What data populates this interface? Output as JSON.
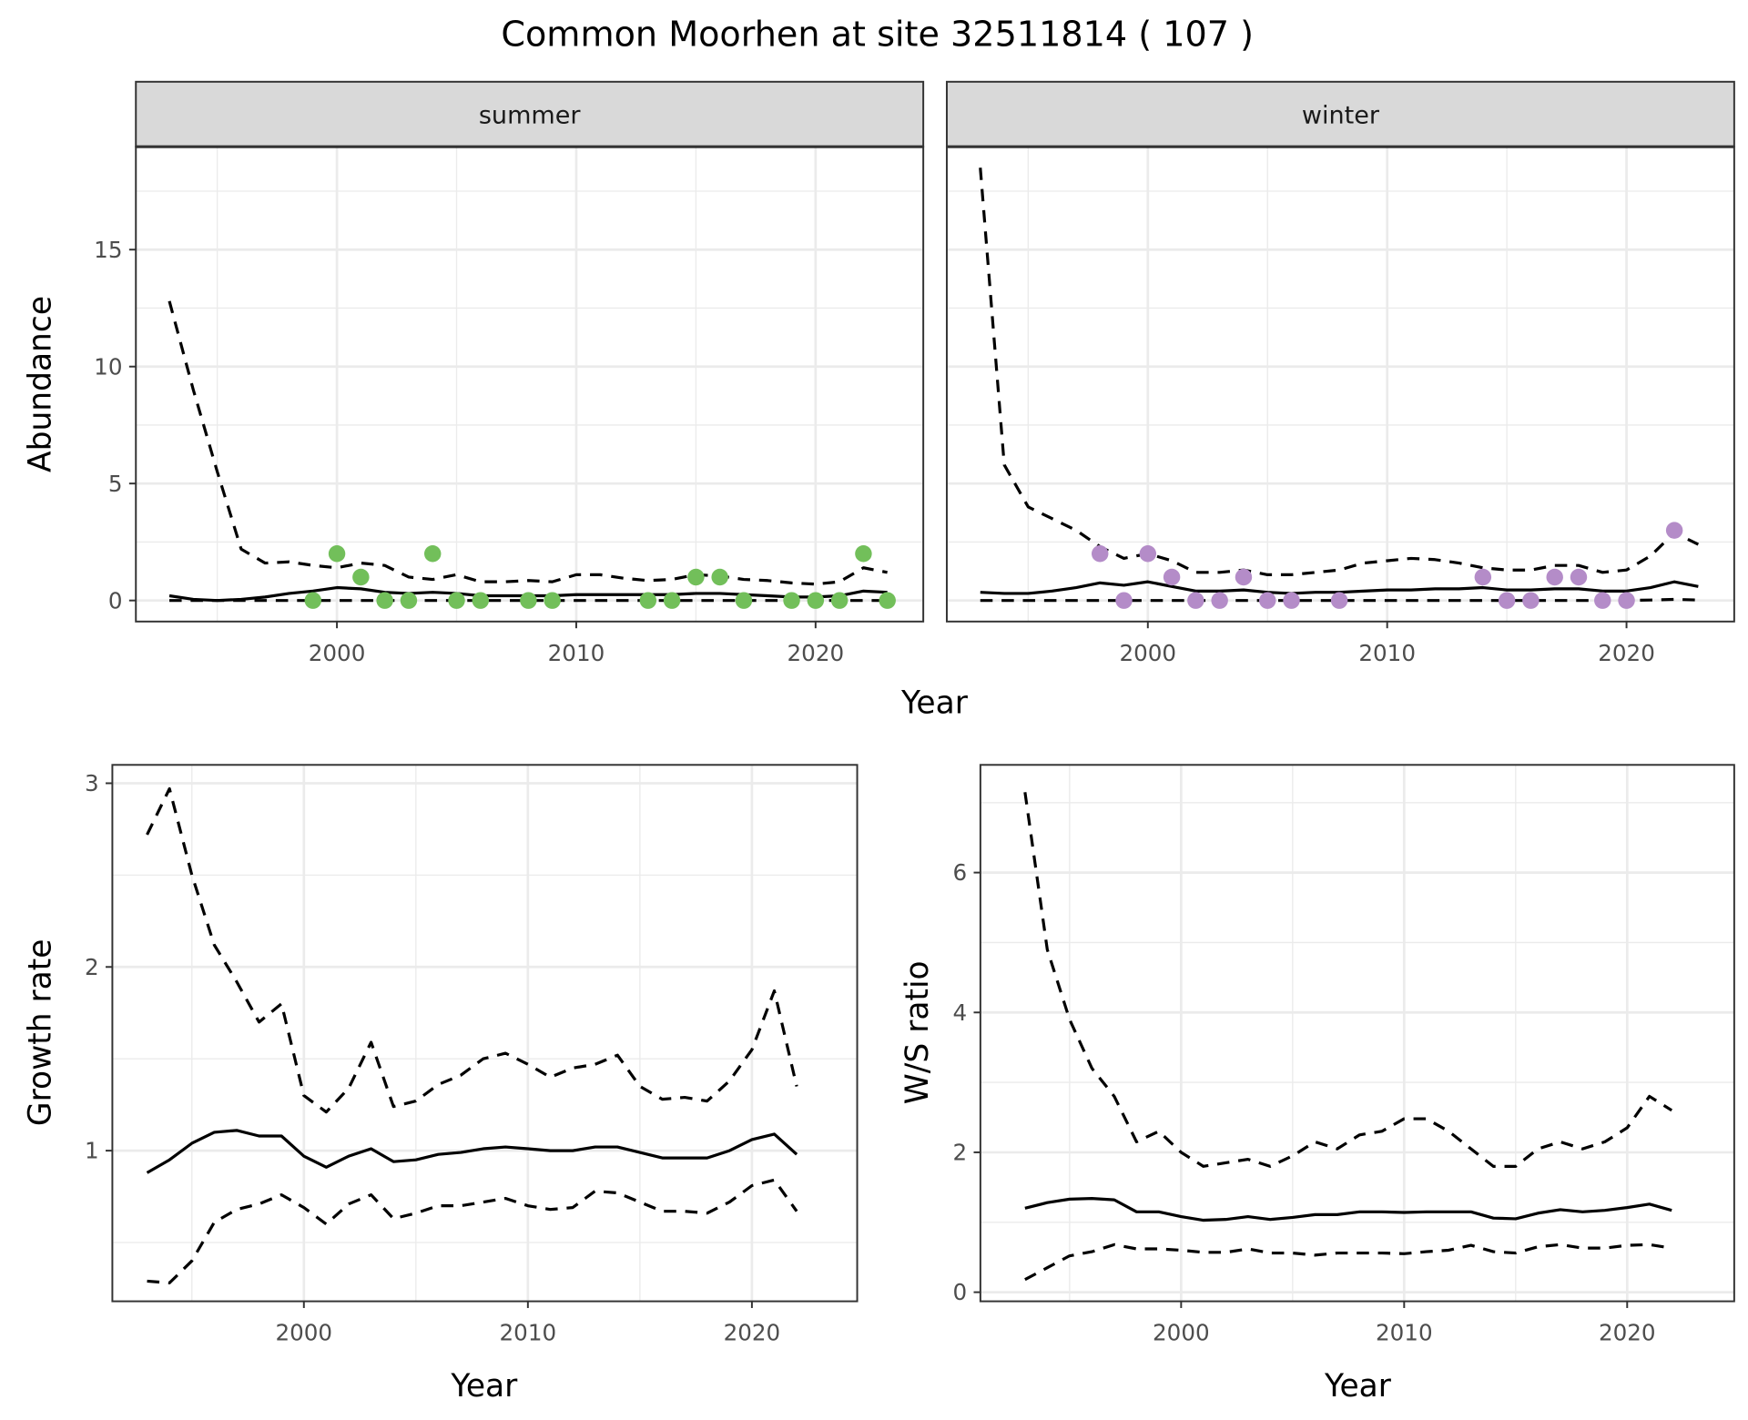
{
  "title": "Common Moorhen at site 32511814 ( 107 )",
  "colors": {
    "summer": "#72bf5a",
    "winter": "#b48cc8",
    "line": "#000000",
    "strip": "#d9d9d9",
    "grid": "#ebebeb"
  },
  "chart_data": [
    {
      "type": "line",
      "panel": "top-left",
      "strip": "summer",
      "xlabel": "Year",
      "ylabel": "Abundance",
      "xlim": [
        1991.6,
        2024.5
      ],
      "ylim": [
        -0.9,
        19.4
      ],
      "xticks": [
        2000,
        2010,
        2020
      ],
      "yticks": [
        0,
        5,
        10,
        15
      ],
      "grid": true,
      "x": [
        1993,
        1994,
        1995,
        1996,
        1997,
        1998,
        1999,
        2000,
        2001,
        2002,
        2003,
        2004,
        2005,
        2006,
        2007,
        2008,
        2009,
        2010,
        2011,
        2012,
        2013,
        2014,
        2015,
        2016,
        2017,
        2018,
        2019,
        2020,
        2021,
        2022,
        2023
      ],
      "series": [
        {
          "style": "solid",
          "values": [
            0.2,
            0.05,
            0,
            0.05,
            0.15,
            0.3,
            0.4,
            0.55,
            0.5,
            0.35,
            0.3,
            0.35,
            0.3,
            0.2,
            0.2,
            0.2,
            0.2,
            0.25,
            0.25,
            0.25,
            0.25,
            0.25,
            0.3,
            0.3,
            0.25,
            0.2,
            0.15,
            0.15,
            0.2,
            0.4,
            0.35
          ]
        },
        {
          "style": "dashed",
          "values": [
            12.8,
            9,
            5.5,
            2.2,
            1.6,
            1.65,
            1.5,
            1.4,
            1.6,
            1.5,
            1.0,
            0.9,
            1.1,
            0.8,
            0.8,
            0.85,
            0.8,
            1.1,
            1.1,
            0.95,
            0.85,
            0.9,
            1.1,
            1.05,
            0.9,
            0.85,
            0.75,
            0.7,
            0.8,
            1.4,
            1.2
          ]
        },
        {
          "style": "dashed",
          "values": [
            0,
            0,
            0,
            0,
            0,
            0,
            0,
            0,
            0,
            0,
            0,
            0,
            0,
            0,
            0,
            0,
            0,
            0,
            0,
            0,
            0,
            0,
            0,
            0,
            0,
            0,
            0,
            0,
            0,
            0,
            0
          ]
        }
      ],
      "points": {
        "x": [
          1999,
          2000,
          2001,
          2002,
          2003,
          2004,
          2005,
          2006,
          2008,
          2009,
          2013,
          2014,
          2015,
          2016,
          2017,
          2019,
          2020,
          2021,
          2022,
          2023
        ],
        "y": [
          0,
          2,
          1,
          0,
          0,
          2,
          0,
          0,
          0,
          0,
          0,
          0,
          1,
          1,
          0,
          0,
          0,
          0,
          2,
          0
        ]
      }
    },
    {
      "type": "line",
      "panel": "top-right",
      "strip": "winter",
      "xlabel": "Year",
      "ylabel": "",
      "xlim": [
        1991.6,
        2024.5
      ],
      "ylim": [
        -0.9,
        19.4
      ],
      "xticks": [
        2000,
        2010,
        2020
      ],
      "yticks": [
        0,
        5,
        10,
        15
      ],
      "grid": true,
      "x": [
        1993,
        1994,
        1995,
        1996,
        1997,
        1998,
        1999,
        2000,
        2001,
        2002,
        2003,
        2004,
        2005,
        2006,
        2007,
        2008,
        2009,
        2010,
        2011,
        2012,
        2013,
        2014,
        2015,
        2016,
        2017,
        2018,
        2019,
        2020,
        2021,
        2022,
        2023
      ],
      "series": [
        {
          "style": "solid",
          "values": [
            0.35,
            0.3,
            0.3,
            0.4,
            0.55,
            0.75,
            0.65,
            0.8,
            0.6,
            0.4,
            0.4,
            0.45,
            0.35,
            0.3,
            0.35,
            0.35,
            0.4,
            0.45,
            0.45,
            0.5,
            0.5,
            0.55,
            0.45,
            0.45,
            0.5,
            0.5,
            0.4,
            0.4,
            0.55,
            0.8,
            0.6
          ]
        },
        {
          "style": "dashed",
          "values": [
            18.5,
            5.8,
            4.0,
            3.5,
            3.0,
            2.3,
            1.8,
            2.0,
            1.7,
            1.2,
            1.2,
            1.3,
            1.1,
            1.1,
            1.2,
            1.3,
            1.6,
            1.7,
            1.8,
            1.75,
            1.6,
            1.4,
            1.3,
            1.3,
            1.5,
            1.5,
            1.2,
            1.3,
            1.9,
            2.9,
            2.4
          ]
        },
        {
          "style": "dashed",
          "values": [
            0,
            0,
            0,
            0,
            0,
            0,
            0,
            0,
            0,
            0,
            0,
            0,
            0,
            0,
            0,
            0,
            0,
            0,
            0,
            0,
            0,
            0,
            0,
            0,
            0,
            0,
            0,
            0,
            0.02,
            0.05,
            0.02
          ]
        }
      ],
      "points": {
        "x": [
          1998,
          1999,
          2000,
          2001,
          2002,
          2003,
          2004,
          2005,
          2006,
          2008,
          2014,
          2015,
          2016,
          2017,
          2018,
          2019,
          2020,
          2022
        ],
        "y": [
          2,
          0,
          2,
          1,
          0,
          0,
          1,
          0,
          0,
          0,
          1,
          0,
          0,
          1,
          1,
          0,
          0,
          3
        ]
      }
    },
    {
      "type": "line",
      "panel": "bottom-left",
      "xlabel": "Year",
      "ylabel": "Growth rate",
      "xlim": [
        1991.45,
        2024.7
      ],
      "ylim": [
        0.18,
        3.1
      ],
      "xticks": [
        2000,
        2010,
        2020
      ],
      "yticks": [
        1,
        2,
        3
      ],
      "grid": true,
      "x": [
        1993,
        1994,
        1995,
        1996,
        1997,
        1998,
        1999,
        2000,
        2001,
        2002,
        2003,
        2004,
        2005,
        2006,
        2007,
        2008,
        2009,
        2010,
        2011,
        2012,
        2013,
        2014,
        2015,
        2016,
        2017,
        2018,
        2019,
        2020,
        2021,
        2022
      ],
      "series": [
        {
          "style": "solid",
          "values": [
            0.88,
            0.95,
            1.04,
            1.1,
            1.11,
            1.08,
            1.08,
            0.97,
            0.91,
            0.97,
            1.01,
            0.94,
            0.95,
            0.98,
            0.99,
            1.01,
            1.02,
            1.01,
            1.0,
            1.0,
            1.02,
            1.02,
            0.99,
            0.96,
            0.96,
            0.96,
            1.0,
            1.06,
            1.09,
            0.98
          ]
        },
        {
          "style": "dashed",
          "values": [
            2.72,
            2.97,
            2.5,
            2.12,
            1.92,
            1.7,
            1.8,
            1.3,
            1.21,
            1.34,
            1.59,
            1.24,
            1.27,
            1.36,
            1.41,
            1.5,
            1.53,
            1.47,
            1.4,
            1.45,
            1.47,
            1.52,
            1.35,
            1.28,
            1.29,
            1.27,
            1.38,
            1.55,
            1.87,
            1.35
          ]
        },
        {
          "style": "dashed",
          "values": [
            0.29,
            0.28,
            0.4,
            0.61,
            0.68,
            0.71,
            0.76,
            0.69,
            0.6,
            0.71,
            0.76,
            0.63,
            0.66,
            0.7,
            0.7,
            0.72,
            0.74,
            0.7,
            0.68,
            0.69,
            0.78,
            0.77,
            0.72,
            0.67,
            0.67,
            0.66,
            0.72,
            0.81,
            0.84,
            0.67
          ]
        }
      ]
    },
    {
      "type": "line",
      "panel": "bottom-right",
      "xlabel": "Year",
      "ylabel": "W/S ratio",
      "xlim": [
        1991,
        2024.8
      ],
      "ylim": [
        -0.13,
        7.54
      ],
      "xticks": [
        2000,
        2010,
        2020
      ],
      "yticks": [
        0,
        2,
        4,
        6
      ],
      "grid": true,
      "x": [
        1993,
        1994,
        1995,
        1996,
        1997,
        1998,
        1999,
        2000,
        2001,
        2002,
        2003,
        2004,
        2005,
        2006,
        2007,
        2008,
        2009,
        2010,
        2011,
        2012,
        2013,
        2014,
        2015,
        2016,
        2017,
        2018,
        2019,
        2020,
        2021,
        2022
      ],
      "series": [
        {
          "style": "solid",
          "values": [
            1.2,
            1.28,
            1.33,
            1.34,
            1.32,
            1.15,
            1.15,
            1.08,
            1.03,
            1.04,
            1.08,
            1.04,
            1.07,
            1.11,
            1.11,
            1.15,
            1.15,
            1.14,
            1.15,
            1.15,
            1.15,
            1.06,
            1.05,
            1.13,
            1.18,
            1.15,
            1.17,
            1.21,
            1.26,
            1.17
          ]
        },
        {
          "style": "dashed",
          "values": [
            7.15,
            4.9,
            3.9,
            3.2,
            2.8,
            2.15,
            2.3,
            2.0,
            1.8,
            1.85,
            1.9,
            1.8,
            1.95,
            2.15,
            2.05,
            2.25,
            2.3,
            2.48,
            2.48,
            2.3,
            2.05,
            1.8,
            1.8,
            2.05,
            2.15,
            2.05,
            2.15,
            2.35,
            2.8,
            2.6
          ]
        },
        {
          "style": "dashed",
          "values": [
            0.18,
            0.35,
            0.52,
            0.58,
            0.68,
            0.62,
            0.62,
            0.6,
            0.57,
            0.57,
            0.62,
            0.56,
            0.56,
            0.53,
            0.56,
            0.56,
            0.56,
            0.55,
            0.58,
            0.6,
            0.67,
            0.58,
            0.56,
            0.65,
            0.68,
            0.63,
            0.63,
            0.67,
            0.68,
            0.63
          ]
        }
      ]
    }
  ]
}
